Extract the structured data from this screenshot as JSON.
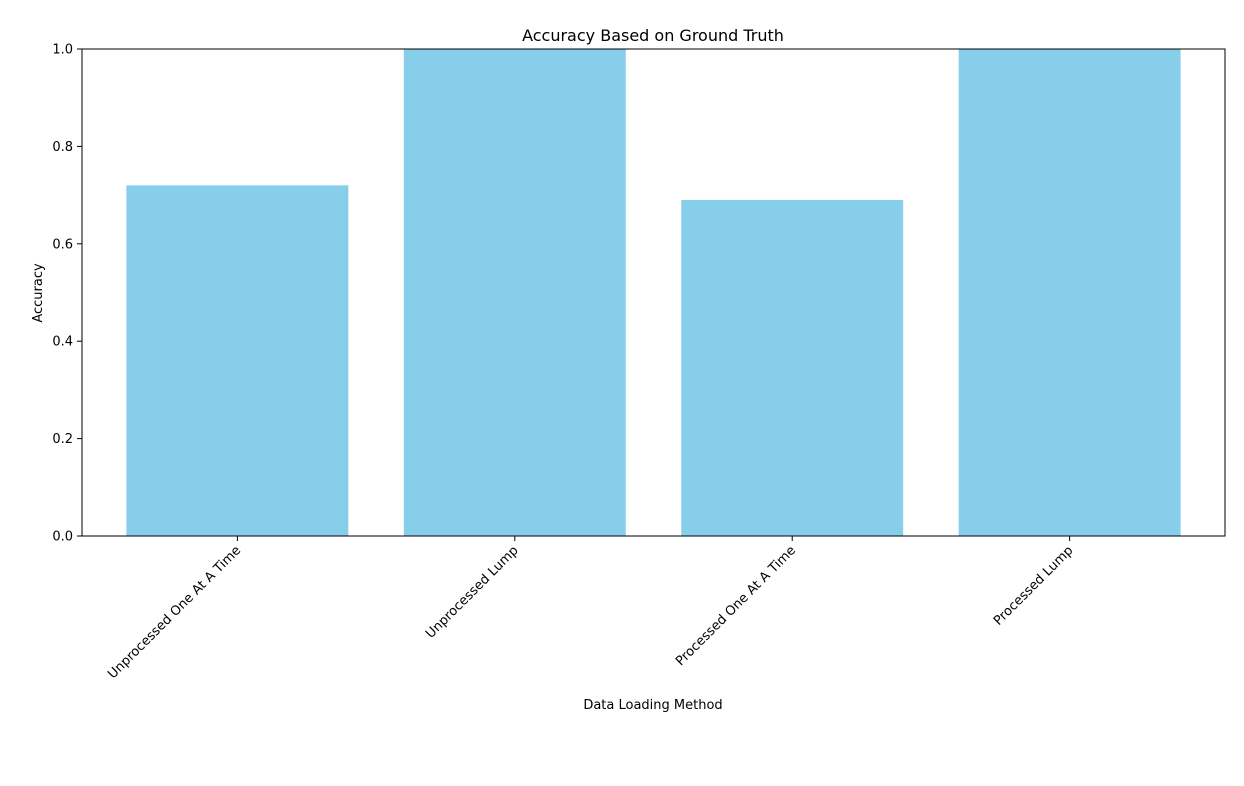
{
  "chart_data": {
    "type": "bar",
    "title": "Accuracy Based on Ground Truth",
    "xlabel": "Data Loading Method",
    "ylabel": "Accuracy",
    "categories": [
      "Unprocessed One At A Time",
      "Unprocessed Lump",
      "Processed One At A Time",
      "Processed Lump"
    ],
    "values": [
      0.72,
      1.0,
      0.69,
      1.0
    ],
    "ylim": [
      0,
      1.0
    ],
    "yticks": [
      "0.0",
      "0.2",
      "0.4",
      "0.6",
      "0.8",
      "1.0"
    ],
    "grid": false,
    "bar_color": "#87CEEB"
  }
}
